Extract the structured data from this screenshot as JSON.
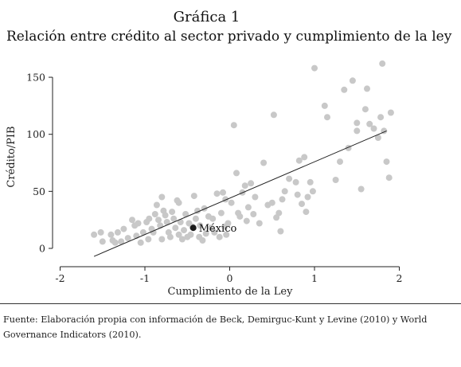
{
  "title": "Gráfica 1",
  "subtitle": "Relación entre crédito al sector privado y cumplimiento de la ley",
  "source": "Fuente: Elaboración propia con información de Beck, Demirguc-Kunt y Levine (2010) y World Governance Indicators (2010).",
  "colors": {
    "points": "#c8c8c8",
    "highlight": "#1a1a1a",
    "line": "#222222"
  },
  "chart_data": {
    "type": "scatter",
    "xlabel": "Cumplimiento de la Ley",
    "ylabel": "Crédito/PIB",
    "xlim": [
      -2.05,
      2.05
    ],
    "ylim": [
      -10,
      160
    ],
    "xticks": [
      "-2",
      "-1",
      "0",
      "1",
      "2"
    ],
    "xtick_values": [
      -2,
      -1,
      0,
      1,
      2
    ],
    "yticks": [
      "0",
      "50",
      "100",
      "150"
    ],
    "ytick_values": [
      0,
      50,
      100,
      150
    ],
    "grid": false,
    "trendline": {
      "x": [
        -1.6,
        1.85
      ],
      "y": [
        -7,
        103
      ]
    },
    "highlight": {
      "label": "México",
      "x": -0.43,
      "y": 18
    },
    "points": [
      [
        -1.6,
        12
      ],
      [
        -1.52,
        14
      ],
      [
        -1.5,
        6
      ],
      [
        -1.4,
        12
      ],
      [
        -1.38,
        7
      ],
      [
        -1.35,
        5
      ],
      [
        -1.32,
        14
      ],
      [
        -1.28,
        6
      ],
      [
        -1.25,
        17
      ],
      [
        -1.2,
        9
      ],
      [
        -1.15,
        25
      ],
      [
        -1.12,
        20
      ],
      [
        -1.1,
        11
      ],
      [
        -1.08,
        22
      ],
      [
        -1.05,
        5
      ],
      [
        -1.02,
        14
      ],
      [
        -0.98,
        23
      ],
      [
        -0.96,
        8
      ],
      [
        -0.95,
        26
      ],
      [
        -0.92,
        17
      ],
      [
        -0.9,
        14
      ],
      [
        -0.88,
        30
      ],
      [
        -0.86,
        38
      ],
      [
        -0.84,
        25
      ],
      [
        -0.82,
        20
      ],
      [
        -0.8,
        45
      ],
      [
        -0.8,
        8
      ],
      [
        -0.78,
        33
      ],
      [
        -0.76,
        29
      ],
      [
        -0.74,
        23
      ],
      [
        -0.72,
        14
      ],
      [
        -0.7,
        10
      ],
      [
        -0.68,
        32
      ],
      [
        -0.66,
        26
      ],
      [
        -0.64,
        18
      ],
      [
        -0.62,
        42
      ],
      [
        -0.6,
        12
      ],
      [
        -0.6,
        40
      ],
      [
        -0.58,
        23
      ],
      [
        -0.56,
        8
      ],
      [
        -0.54,
        16
      ],
      [
        -0.52,
        30
      ],
      [
        -0.5,
        10
      ],
      [
        -0.48,
        22
      ],
      [
        -0.46,
        12
      ],
      [
        -0.44,
        19
      ],
      [
        -0.42,
        46
      ],
      [
        -0.4,
        26
      ],
      [
        -0.38,
        33
      ],
      [
        -0.36,
        10
      ],
      [
        -0.35,
        20
      ],
      [
        -0.32,
        7
      ],
      [
        -0.3,
        35
      ],
      [
        -0.28,
        13
      ],
      [
        -0.25,
        28
      ],
      [
        -0.22,
        18
      ],
      [
        -0.2,
        26
      ],
      [
        -0.18,
        14
      ],
      [
        -0.15,
        48
      ],
      [
        -0.12,
        10
      ],
      [
        -0.1,
        31
      ],
      [
        -0.08,
        49
      ],
      [
        -0.06,
        19
      ],
      [
        -0.04,
        12
      ],
      [
        -0.02,
        22
      ],
      [
        0.02,
        40
      ],
      [
        0.05,
        108
      ],
      [
        0.08,
        66
      ],
      [
        0.1,
        31
      ],
      [
        0.12,
        28
      ],
      [
        0.15,
        49
      ],
      [
        0.18,
        55
      ],
      [
        0.2,
        24
      ],
      [
        0.22,
        36
      ],
      [
        0.25,
        57
      ],
      [
        0.3,
        45
      ],
      [
        0.35,
        22
      ],
      [
        0.4,
        75
      ],
      [
        0.45,
        38
      ],
      [
        0.5,
        40
      ],
      [
        0.52,
        117
      ],
      [
        0.55,
        27
      ],
      [
        0.58,
        31
      ],
      [
        0.6,
        15
      ],
      [
        0.62,
        43
      ],
      [
        0.65,
        50
      ],
      [
        0.7,
        61
      ],
      [
        0.78,
        58
      ],
      [
        0.8,
        47
      ],
      [
        0.82,
        77
      ],
      [
        0.85,
        39
      ],
      [
        0.88,
        80
      ],
      [
        0.9,
        32
      ],
      [
        0.92,
        45
      ],
      [
        0.95,
        58
      ],
      [
        0.98,
        50
      ],
      [
        1.0,
        158
      ],
      [
        1.12,
        125
      ],
      [
        1.15,
        115
      ],
      [
        1.25,
        60
      ],
      [
        1.3,
        76
      ],
      [
        1.35,
        139
      ],
      [
        1.4,
        88
      ],
      [
        1.45,
        147
      ],
      [
        1.5,
        103
      ],
      [
        1.55,
        52
      ],
      [
        1.6,
        122
      ],
      [
        1.62,
        140
      ],
      [
        1.65,
        109
      ],
      [
        1.7,
        105
      ],
      [
        1.75,
        97
      ],
      [
        1.78,
        115
      ],
      [
        1.8,
        162
      ],
      [
        1.82,
        103
      ],
      [
        1.85,
        76
      ],
      [
        1.88,
        62
      ],
      [
        1.9,
        119
      ],
      [
        1.5,
        110
      ],
      [
        -0.05,
        43
      ],
      [
        0.28,
        30
      ]
    ]
  }
}
